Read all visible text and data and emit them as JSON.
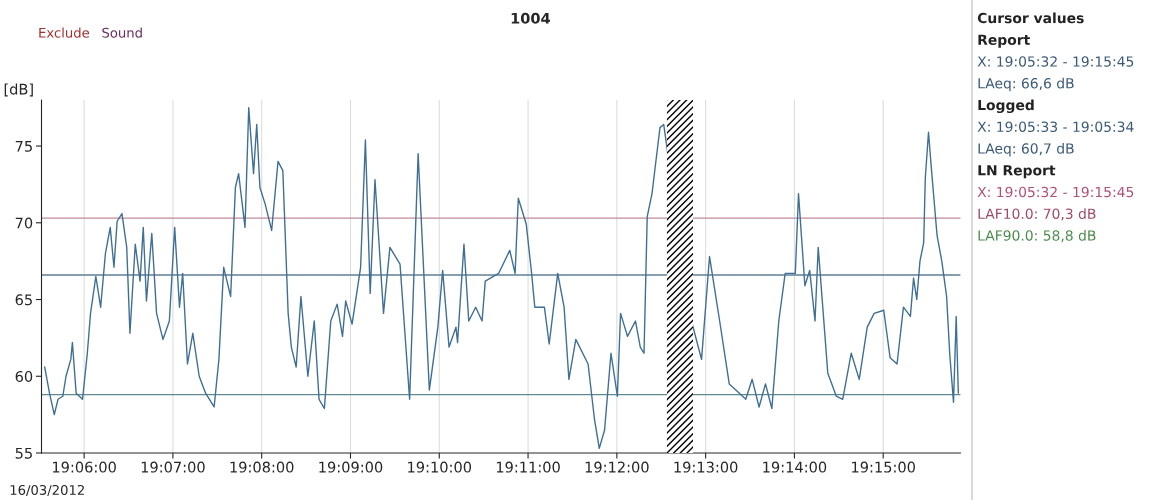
{
  "chart_data": {
    "type": "line",
    "title": "1004",
    "ylabel": "[dB]",
    "x": [
      19.0926,
      19.0935,
      19.0944,
      19.0951,
      19.096,
      19.0966,
      19.0975,
      19.0978,
      19.0985,
      19.0997,
      19.1006,
      19.1012,
      19.1022,
      19.1031,
      19.104,
      19.1049,
      19.1056,
      19.1062,
      19.1071,
      19.108,
      19.1086,
      19.1096,
      19.1105,
      19.1111,
      19.1117,
      19.1127,
      19.1136,
      19.1148,
      19.116,
      19.117,
      19.1179,
      19.1185,
      19.1194,
      19.1204,
      19.1216,
      19.1228,
      19.1244,
      19.1253,
      19.1262,
      19.1275,
      19.1284,
      19.129,
      19.1302,
      19.1309,
      19.1318,
      19.1324,
      19.133,
      19.134,
      19.1352,
      19.1364,
      19.1373,
      19.1383,
      19.1389,
      19.1398,
      19.1407,
      19.142,
      19.1432,
      19.1441,
      19.1451,
      19.1463,
      19.1475,
      19.1485,
      19.1491,
      19.1503,
      19.1519,
      19.1528,
      19.1537,
      19.1546,
      19.1562,
      19.1574,
      19.1593,
      19.1611,
      19.1627,
      19.1648,
      19.1664,
      19.1673,
      19.1685,
      19.1698,
      19.1701,
      19.1713,
      19.1722,
      19.1735,
      19.1747,
      19.1753,
      19.1778,
      19.1799,
      19.1809,
      19.1815,
      19.183,
      19.184,
      19.1846,
      19.1864,
      19.1873,
      19.1889,
      19.1901,
      19.191,
      19.1923,
      19.1946,
      19.1958,
      19.1967,
      19.1977,
      19.1989,
      19.2001,
      19.2007,
      19.202,
      19.2035,
      19.2044,
      19.2051,
      19.2057,
      19.2066,
      19.2075,
      19.2081,
      19.2088,
      19.2094,
      19.2112,
      19.2125,
      19.214,
      19.2159,
      19.2174,
      19.2193,
      19.2211,
      19.223,
      19.2242,
      19.2254,
      19.2267,
      19.2279,
      19.2291,
      19.2304,
      19.2316,
      19.2335,
      19.2341,
      19.2353,
      19.2362,
      19.2372,
      19.2378,
      19.2396,
      19.2412,
      19.2424,
      19.244,
      19.2455,
      19.247,
      19.2483,
      19.2501,
      19.2513,
      19.2526,
      19.2538,
      19.2551,
      19.2557,
      19.2563,
      19.2569,
      19.2576,
      19.2579,
      19.2585,
      19.2591,
      19.2601,
      19.261,
      19.2619,
      19.2625,
      19.2632,
      19.2637,
      19.2641
    ],
    "series": [
      {
        "color": "#3f6f94",
        "values": [
          60.6,
          58.9,
          57.5,
          58.5,
          58.7,
          60.0,
          61.1,
          62.2,
          58.9,
          58.5,
          61.5,
          64.1,
          66.5,
          64.5,
          68.0,
          69.7,
          67.1,
          70.1,
          70.6,
          68.4,
          62.8,
          68.6,
          66.2,
          69.7,
          64.9,
          69.3,
          64.1,
          62.4,
          63.6,
          69.7,
          64.5,
          66.7,
          60.8,
          62.8,
          60.0,
          58.9,
          58.0,
          61.1,
          67.1,
          65.2,
          72.3,
          73.2,
          69.7,
          77.5,
          73.2,
          76.4,
          72.3,
          71.2,
          69.5,
          74.0,
          73.4,
          64.1,
          61.9,
          60.6,
          65.2,
          60.0,
          63.6,
          58.5,
          57.9,
          63.6,
          64.7,
          62.6,
          64.9,
          63.4,
          67.1,
          75.4,
          65.4,
          72.8,
          64.1,
          68.4,
          67.3,
          58.5,
          74.5,
          59.1,
          63.2,
          66.9,
          61.9,
          63.2,
          62.2,
          68.6,
          63.6,
          64.5,
          63.6,
          66.2,
          66.7,
          68.2,
          66.7,
          71.6,
          69.9,
          66.7,
          64.5,
          64.5,
          62.1,
          66.7,
          64.5,
          59.8,
          62.4,
          60.8,
          57.2,
          55.3,
          56.5,
          61.5,
          58.7,
          64.1,
          62.6,
          63.6,
          61.9,
          61.5,
          70.4,
          71.9,
          74.5,
          76.2,
          76.4,
          null,
          null,
          null,
          63.6,
          61.1,
          67.8,
          63.6,
          59.5,
          58.9,
          58.5,
          59.8,
          58.0,
          59.5,
          57.9,
          63.6,
          66.7,
          66.7,
          71.9,
          65.9,
          66.9,
          63.6,
          68.4,
          60.2,
          58.7,
          58.5,
          61.5,
          59.8,
          63.2,
          64.1,
          64.3,
          61.2,
          60.8,
          64.5,
          63.9,
          66.4,
          65.0,
          67.5,
          68.7,
          72.9,
          75.9,
          73.3,
          69.2,
          67.5,
          65.2,
          61.4,
          58.3,
          63.9,
          58.9
        ]
      }
    ],
    "xlim": [
      19.092,
      19.2645
    ],
    "ylim": [
      55,
      78
    ],
    "xticks": [
      {
        "value": 19.1,
        "label": "19:06:00"
      },
      {
        "value": 19.116667,
        "label": "19:07:00"
      },
      {
        "value": 19.133333,
        "label": "19:08:00"
      },
      {
        "value": 19.15,
        "label": "19:09:00"
      },
      {
        "value": 19.166667,
        "label": "19:10:00"
      },
      {
        "value": 19.183333,
        "label": "19:11:00"
      },
      {
        "value": 19.2,
        "label": "19:12:00"
      },
      {
        "value": 19.216667,
        "label": "19:13:00"
      },
      {
        "value": 19.233333,
        "label": "19:14:00"
      },
      {
        "value": 19.25,
        "label": "19:15:00"
      }
    ],
    "yticks": [
      55,
      60,
      65,
      70,
      75
    ],
    "ref_lines": [
      {
        "axis": "y",
        "value": 70.3,
        "label": null,
        "color": "#c08a9a"
      },
      {
        "axis": "y",
        "value": 66.6,
        "label": null,
        "color": "#5f7f95"
      },
      {
        "axis": "y",
        "value": 58.8,
        "label": null,
        "color": "#5f8a90"
      }
    ],
    "bands": [
      {
        "axis": "x",
        "from": 19.2094,
        "to": 19.2143,
        "label": null,
        "color": "#000000"
      }
    ],
    "grid": "x",
    "marker": "none",
    "line_style": "solid",
    "annotations": [
      "16/03/2012",
      "Exclude",
      "Sound",
      "Cursor values",
      "Report",
      "X: 19:05:32 - 19:15:45",
      "LAeq: 66,6 dB",
      "Logged",
      "X: 19:05:33 - 19:05:34",
      "LAeq: 60,7 dB",
      "LN Report",
      "X: 19:05:32 - 19:15:45",
      "LAF10.0: 70,3 dB",
      "LAF90.0: 58,8 dB"
    ]
  }
}
